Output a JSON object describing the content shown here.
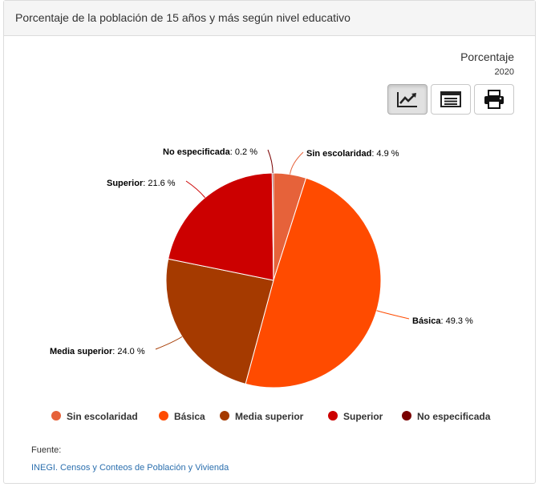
{
  "header": {
    "title": "Porcentaje de la población de 15 años y más según nivel educativo"
  },
  "units": {
    "label": "Porcentaje",
    "year": "2020"
  },
  "toolbar": {
    "icons": [
      "chart-line-icon",
      "table-icon",
      "print-icon"
    ]
  },
  "chart_data": {
    "type": "pie",
    "title": "",
    "categories": [
      "Sin escolaridad",
      "Básica",
      "Media superior",
      "Superior",
      "No especificada"
    ],
    "values": [
      4.9,
      49.3,
      24.0,
      21.6,
      0.2
    ],
    "value_labels": [
      "4.9 %",
      "49.3 %",
      "24.0 %",
      "21.6 %",
      "0.2 %"
    ],
    "colors": [
      "#e6623a",
      "#ff4b00",
      "#a53a00",
      "#cc0000",
      "#7a0000"
    ],
    "legend_position": "bottom"
  },
  "source": {
    "label": "Fuente:",
    "link_text": "INEGI. Censos y Conteos de Población y Vivienda"
  }
}
